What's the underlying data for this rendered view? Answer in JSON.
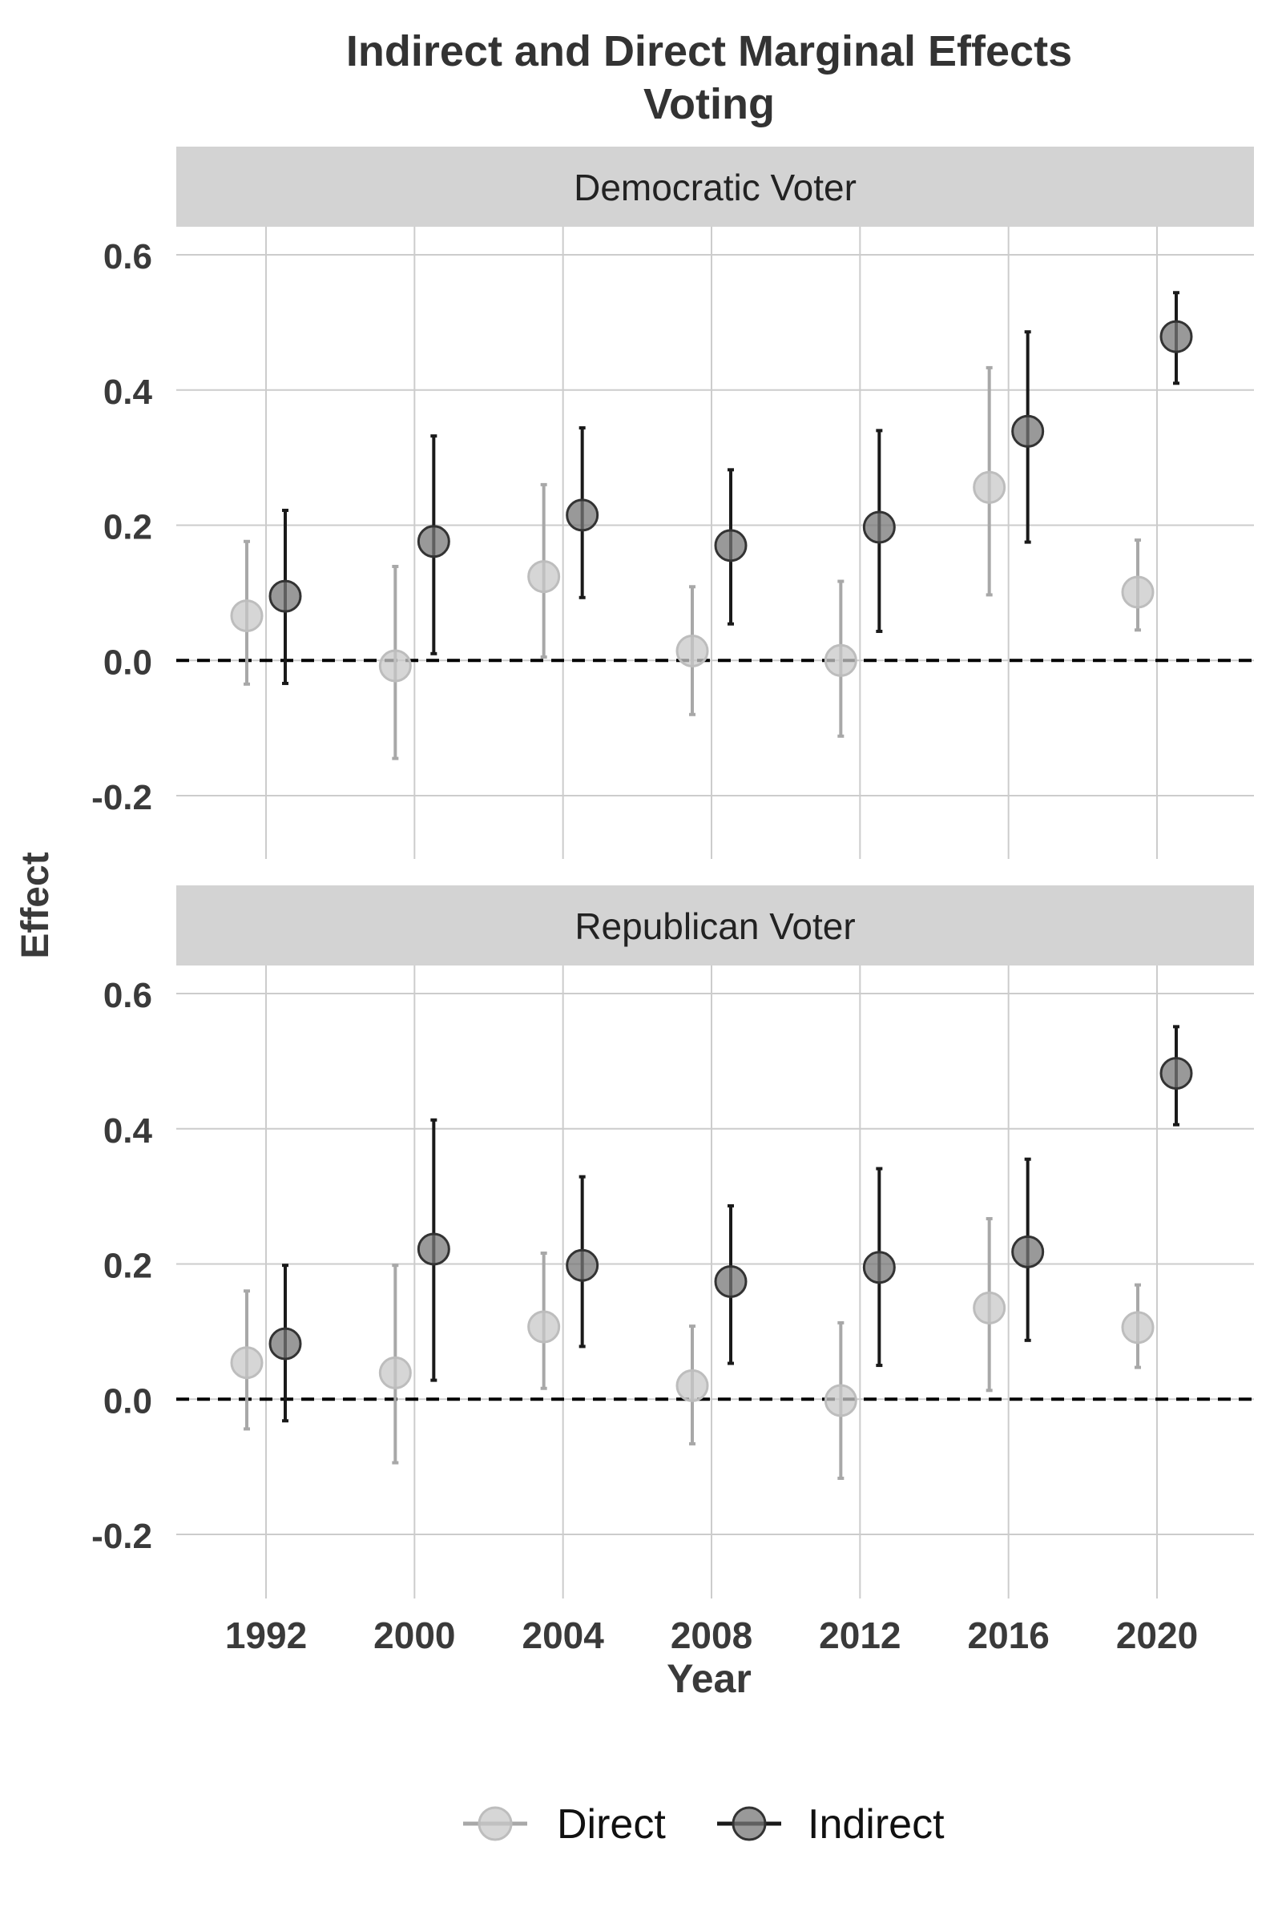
{
  "chart_data": {
    "type": "scatter",
    "title": "Indirect and Direct Marginal Effects",
    "subtitle": "Voting",
    "xlabel": "Year",
    "ylabel": "Effect",
    "categories": [
      "1992",
      "2000",
      "2004",
      "2008",
      "2012",
      "2016",
      "2020"
    ],
    "ylim": [
      -0.3,
      0.6
    ],
    "yticks": [
      -0.2,
      0.0,
      0.2,
      0.4,
      0.6
    ],
    "ytick_labels": [
      "-0.2",
      "0.0",
      "0.2",
      "0.4",
      "0.6"
    ],
    "reference_line": 0.0,
    "grid": true,
    "legend_position": "bottom",
    "legend": [
      {
        "name": "Direct",
        "color": "#c8c8c8"
      },
      {
        "name": "Indirect",
        "color": "#6e6e6e"
      }
    ],
    "colors": {
      "direct_point": "#c8c8c8",
      "direct_bar": "#a8a8a8",
      "indirect_point": "#777777",
      "indirect_bar": "#1a1a1a",
      "strip": "#d3d3d3",
      "grid": "#cccccc"
    },
    "panels": [
      {
        "label": "Democratic Voter",
        "series": [
          {
            "name": "Direct",
            "values": [
              0.066,
              -0.008,
              0.124,
              0.014,
              0.0,
              0.256,
              0.101
            ],
            "lower": [
              -0.035,
              -0.145,
              0.005,
              -0.08,
              -0.112,
              0.097,
              0.045
            ],
            "upper": [
              0.176,
              0.139,
              0.26,
              0.109,
              0.117,
              0.433,
              0.178
            ]
          },
          {
            "name": "Indirect",
            "values": [
              0.095,
              0.176,
              0.215,
              0.17,
              0.197,
              0.339,
              0.479
            ],
            "lower": [
              -0.034,
              0.01,
              0.093,
              0.054,
              0.043,
              0.175,
              0.41
            ],
            "upper": [
              0.222,
              0.332,
              0.344,
              0.282,
              0.34,
              0.486,
              0.544
            ]
          }
        ]
      },
      {
        "label": "Republican Voter",
        "series": [
          {
            "name": "Direct",
            "values": [
              0.054,
              0.039,
              0.107,
              0.02,
              -0.002,
              0.135,
              0.106
            ],
            "lower": [
              -0.044,
              -0.094,
              0.016,
              -0.066,
              -0.117,
              0.013,
              0.047
            ],
            "upper": [
              0.16,
              0.198,
              0.216,
              0.108,
              0.113,
              0.267,
              0.169
            ]
          },
          {
            "name": "Indirect",
            "values": [
              0.082,
              0.222,
              0.198,
              0.174,
              0.195,
              0.218,
              0.482
            ],
            "lower": [
              -0.032,
              0.028,
              0.078,
              0.053,
              0.05,
              0.087,
              0.406
            ],
            "upper": [
              0.198,
              0.413,
              0.329,
              0.286,
              0.341,
              0.355,
              0.551
            ]
          }
        ]
      }
    ]
  }
}
